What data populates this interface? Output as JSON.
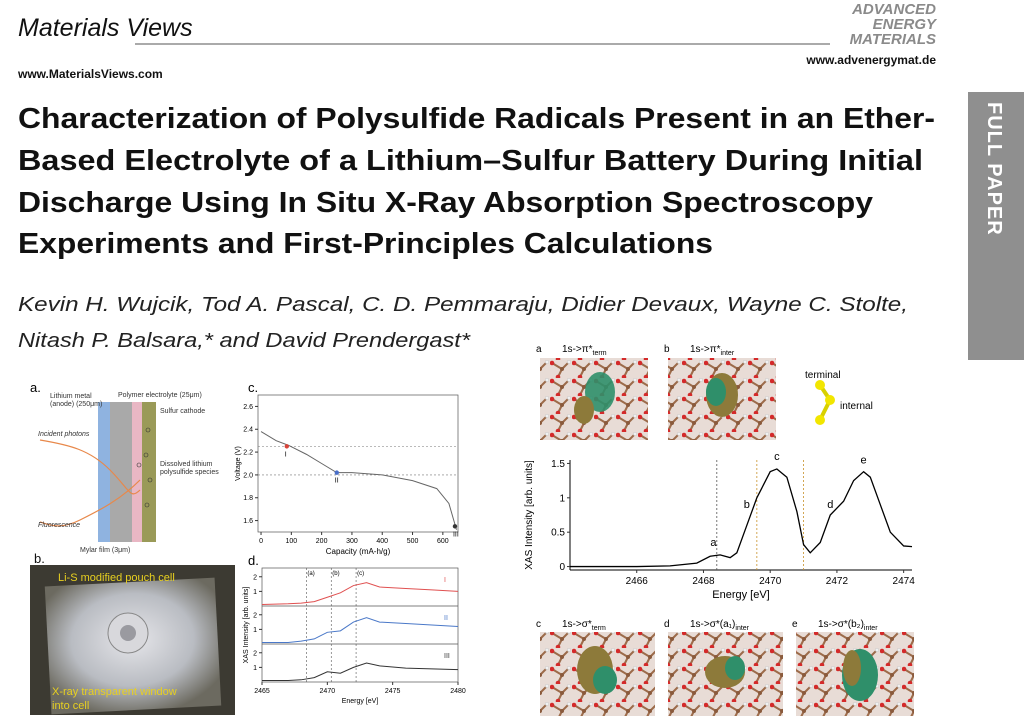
{
  "header": {
    "logo": "Materials Views",
    "site_left": "www.MaterialsViews.com",
    "journal_lines": [
      "ADVANCED",
      "ENERGY",
      "MATERIALS"
    ],
    "site_right": "www.advenergymat.de"
  },
  "side_tab": "FULL PAPER",
  "title_lines": [
    "Characterization of Polysulfide Radicals Present in an Ether-",
    "Based Electrolyte of a Lithium–Sulfur Battery During Initial",
    "Discharge Using In Situ X-Ray Absorption Spectroscopy",
    "Experiments and First-Principles Calculations"
  ],
  "author_lines": [
    "Kevin H. Wujcik, Tod A. Pascal, C. D. Pemmaraju, Didier Devaux, Wayne C. Stolte,",
    "Nitash P. Balsara,* and David Prendergast*"
  ],
  "figure_left": {
    "panel_a": {
      "label": "a.",
      "labels": [
        "Lithium metal",
        "(anode) (250μm)",
        "Polymer electrolyte (25μm)",
        "Sulfur cathode",
        "Incident photons",
        "Dissolved lithium",
        "polysulfide species",
        "Fluorescence",
        "Mylar film (3μm)"
      ]
    },
    "panel_b": {
      "label": "b.",
      "labels": [
        "Li-S modified pouch cell",
        "X-ray transparent window",
        "into cell"
      ]
    },
    "panel_c": {
      "label": "c.",
      "chart": {
        "type": "line",
        "x_label": "Capacity (mA-h/g)",
        "y_label": "Voltage (V)",
        "xlim": [
          -10,
          650
        ],
        "ylim": [
          1.5,
          2.7
        ],
        "xticks": [
          0,
          100,
          200,
          300,
          400,
          500,
          600
        ],
        "yticks": [
          1.6,
          1.8,
          {
            "value": 2,
            "label": "2.0"
          },
          2.2,
          2.4,
          2.6
        ],
        "x": [
          0,
          50,
          90,
          150,
          200,
          250,
          300,
          400,
          500,
          580,
          620,
          645
        ],
        "values": [
          2.38,
          2.3,
          2.26,
          2.18,
          2.1,
          2.02,
          2.02,
          2.0,
          1.95,
          1.88,
          1.75,
          1.52
        ],
        "color": "#666",
        "hlines": [
          2.25,
          2.0
        ],
        "points": [
          {
            "label": "I",
            "x": 85,
            "y": 2.25,
            "color": "#d9443a"
          },
          {
            "label": "II",
            "x": 250,
            "y": 2.02,
            "color": "#4a6fc9"
          },
          {
            "label": "III",
            "x": 640,
            "y": 1.55,
            "color": "#333"
          }
        ]
      }
    },
    "panel_d": {
      "label": "d.",
      "chart": {
        "type": "line",
        "x_label": "Energy [eV]",
        "y_label": "XAS Intensity [arb. units]",
        "xlim": [
          2465,
          2480
        ],
        "xticks": [
          2465,
          2470,
          2475,
          2480
        ],
        "ylim": [
          0,
          2.6
        ],
        "yticks": [
          1,
          2
        ],
        "vlines": [
          2468.4,
          2470.3,
          2472.2
        ],
        "vline_labels": [
          "(a)",
          "(b)",
          "(c)"
        ],
        "x": [
          2465,
          2467,
          2468,
          2469,
          2470,
          2471,
          2472,
          2473,
          2474,
          2476,
          2478,
          2480
        ],
        "series": [
          {
            "name": "I",
            "color": "#e05050",
            "values": [
              0.1,
              0.15,
              0.2,
              0.3,
              0.6,
              0.9,
              1.4,
              1.6,
              1.3,
              1.2,
              1.1,
              1.0
            ]
          },
          {
            "name": "II",
            "color": "#4a78c8",
            "values": [
              0.1,
              0.1,
              0.2,
              0.35,
              0.8,
              0.9,
              1.5,
              1.8,
              1.5,
              1.4,
              1.3,
              1.2
            ]
          },
          {
            "name": "III",
            "color": "#333333",
            "values": [
              0.1,
              0.1,
              0.15,
              0.3,
              0.7,
              0.6,
              1.0,
              1.3,
              1.1,
              0.95,
              0.9,
              0.85
            ]
          }
        ]
      }
    }
  },
  "figure_right": {
    "top_panels": [
      {
        "label": "a",
        "main": "1s->π*",
        "sub": "term"
      },
      {
        "label": "b",
        "main": "1s->π*",
        "sub": "inter"
      }
    ],
    "legend": [
      "terminal",
      "internal"
    ],
    "chart": {
      "type": "line",
      "x_label": "Energy [eV]",
      "y_label": "XAS Intensity [arb. units]",
      "xlim": [
        2464,
        2474.25
      ],
      "ylim": [
        -0.05,
        1.55
      ],
      "xticks": [
        2466,
        2468,
        2470,
        2472,
        2474
      ],
      "yticks": [
        0,
        0.5,
        1,
        1.5
      ],
      "x": [
        2464,
        2466,
        2467,
        2467.8,
        2468.2,
        2468.5,
        2468.8,
        2469,
        2469.3,
        2469.6,
        2470,
        2470.2,
        2470.5,
        2470.8,
        2471,
        2471.2,
        2471.5,
        2471.8,
        2472.2,
        2472.5,
        2472.8,
        2473,
        2473.3,
        2473.6,
        2474,
        2474.25
      ],
      "values": [
        0,
        0,
        0.01,
        0.05,
        0.15,
        0.17,
        0.13,
        0.2,
        0.6,
        1.0,
        1.38,
        1.42,
        1.3,
        0.8,
        0.32,
        0.2,
        0.35,
        0.75,
        0.95,
        1.25,
        1.38,
        1.3,
        0.9,
        0.5,
        0.3,
        0.29
      ],
      "color": "#000000",
      "vlines": [
        2468.4,
        2469.6,
        2471.0
      ],
      "annotations": [
        {
          "text": "a",
          "x": 2468.3,
          "y": 0.3
        },
        {
          "text": "b",
          "x": 2469.3,
          "y": 0.85
        },
        {
          "text": "c",
          "x": 2470.2,
          "y": 1.55
        },
        {
          "text": "d",
          "x": 2471.8,
          "y": 0.85
        },
        {
          "text": "e",
          "x": 2472.8,
          "y": 1.5
        }
      ]
    },
    "bottom_panels": [
      {
        "label": "c",
        "main": "1s->σ*",
        "sub": "term"
      },
      {
        "label": "d",
        "main": "1s->σ*(a₁)",
        "sub": "inter"
      },
      {
        "label": "e",
        "main": "1s->σ*(b₂)",
        "sub": "inter"
      }
    ]
  }
}
